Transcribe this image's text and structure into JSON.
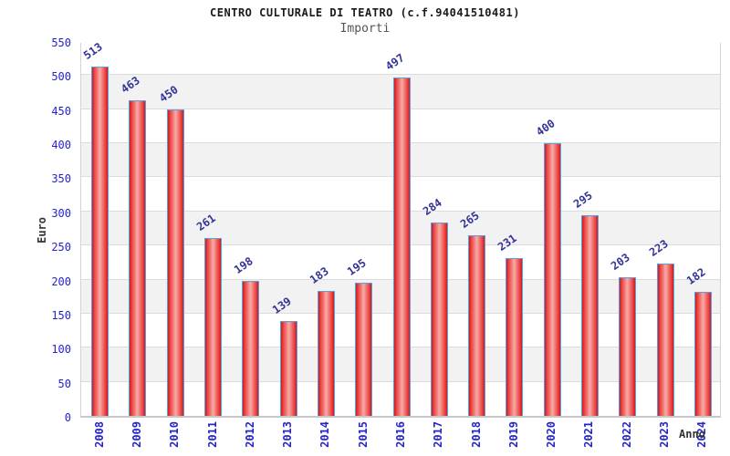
{
  "header": {
    "title": "CENTRO CULTURALE DI TEATRO (c.f.94041510481)",
    "subtitle": "Importi"
  },
  "chart_data": {
    "type": "bar",
    "title": "CENTRO CULTURALE DI TEATRO (c.f.94041510481)",
    "subtitle": "Importi",
    "xlabel": "Anno",
    "ylabel": "Euro",
    "categories": [
      "2008",
      "2009",
      "2010",
      "2011",
      "2012",
      "2013",
      "2014",
      "2015",
      "2016",
      "2017",
      "2018",
      "2019",
      "2020",
      "2021",
      "2022",
      "2023",
      "2024"
    ],
    "values": [
      513,
      463,
      450,
      261,
      198,
      139,
      183,
      195,
      497,
      284,
      265,
      231,
      400,
      295,
      203,
      223,
      182
    ],
    "ylim": [
      0,
      550
    ],
    "ytick_step": 50,
    "yticks": [
      0,
      50,
      100,
      150,
      200,
      250,
      300,
      350,
      400,
      450,
      500,
      550
    ],
    "grid": "horizontal gridlines every 50, alternating white/gray background bands",
    "legend": "none",
    "bar_value_labels": "shown above each bar, rotated ~35deg",
    "xtick_labels_rotation": "vertical (90deg)",
    "colors": {
      "bar_fill_edge": "#c41f1f",
      "bar_fill_inner": "#ea3a3a",
      "bar_fill_center": "#f7aba5",
      "bar_border": "#58a0e0",
      "tick_label": "#2424cc",
      "value_label": "#333399",
      "axis_title": "#333333",
      "band_gray": "#f2f2f2",
      "band_white": "#ffffff",
      "grid_line": "#dcdcdc",
      "plot_border": "#d4d4d4"
    }
  }
}
